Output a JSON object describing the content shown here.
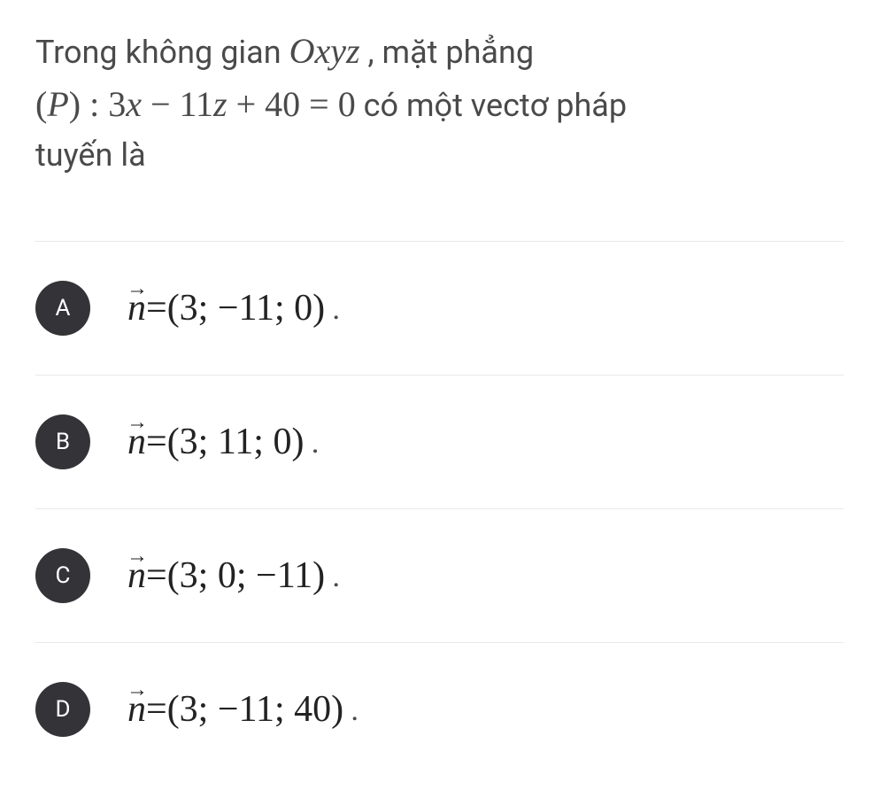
{
  "question": {
    "line1_prefix": "Trong không gian ",
    "line1_math": "Oxyz",
    "line1_suffix": " , mặt phẳng",
    "line2_math": "(P) : 3x − 11z + 40 = 0",
    "line2_suffix": " có một vectơ pháp",
    "line3": "tuyến là"
  },
  "options": [
    {
      "label": "A",
      "vector": "(3; −11; 0)"
    },
    {
      "label": "B",
      "vector": "(3; 11; 0)"
    },
    {
      "label": "C",
      "vector": "(3; 0; −11)"
    },
    {
      "label": "D",
      "vector": "(3; −11; 40)"
    }
  ],
  "vec_symbol": "n",
  "vec_arrow": "⃗",
  "equals": " = ",
  "period": ".",
  "colors": {
    "badge_bg": "#333338",
    "badge_fg": "#ffffff",
    "text": "#4a4a4a",
    "math_text": "#222222",
    "border": "#e8e8e8",
    "background": "#ffffff"
  },
  "typography": {
    "question_fontsize": 36,
    "math_fontsize": 40,
    "option_fontsize": 42,
    "badge_fontsize": 26
  }
}
